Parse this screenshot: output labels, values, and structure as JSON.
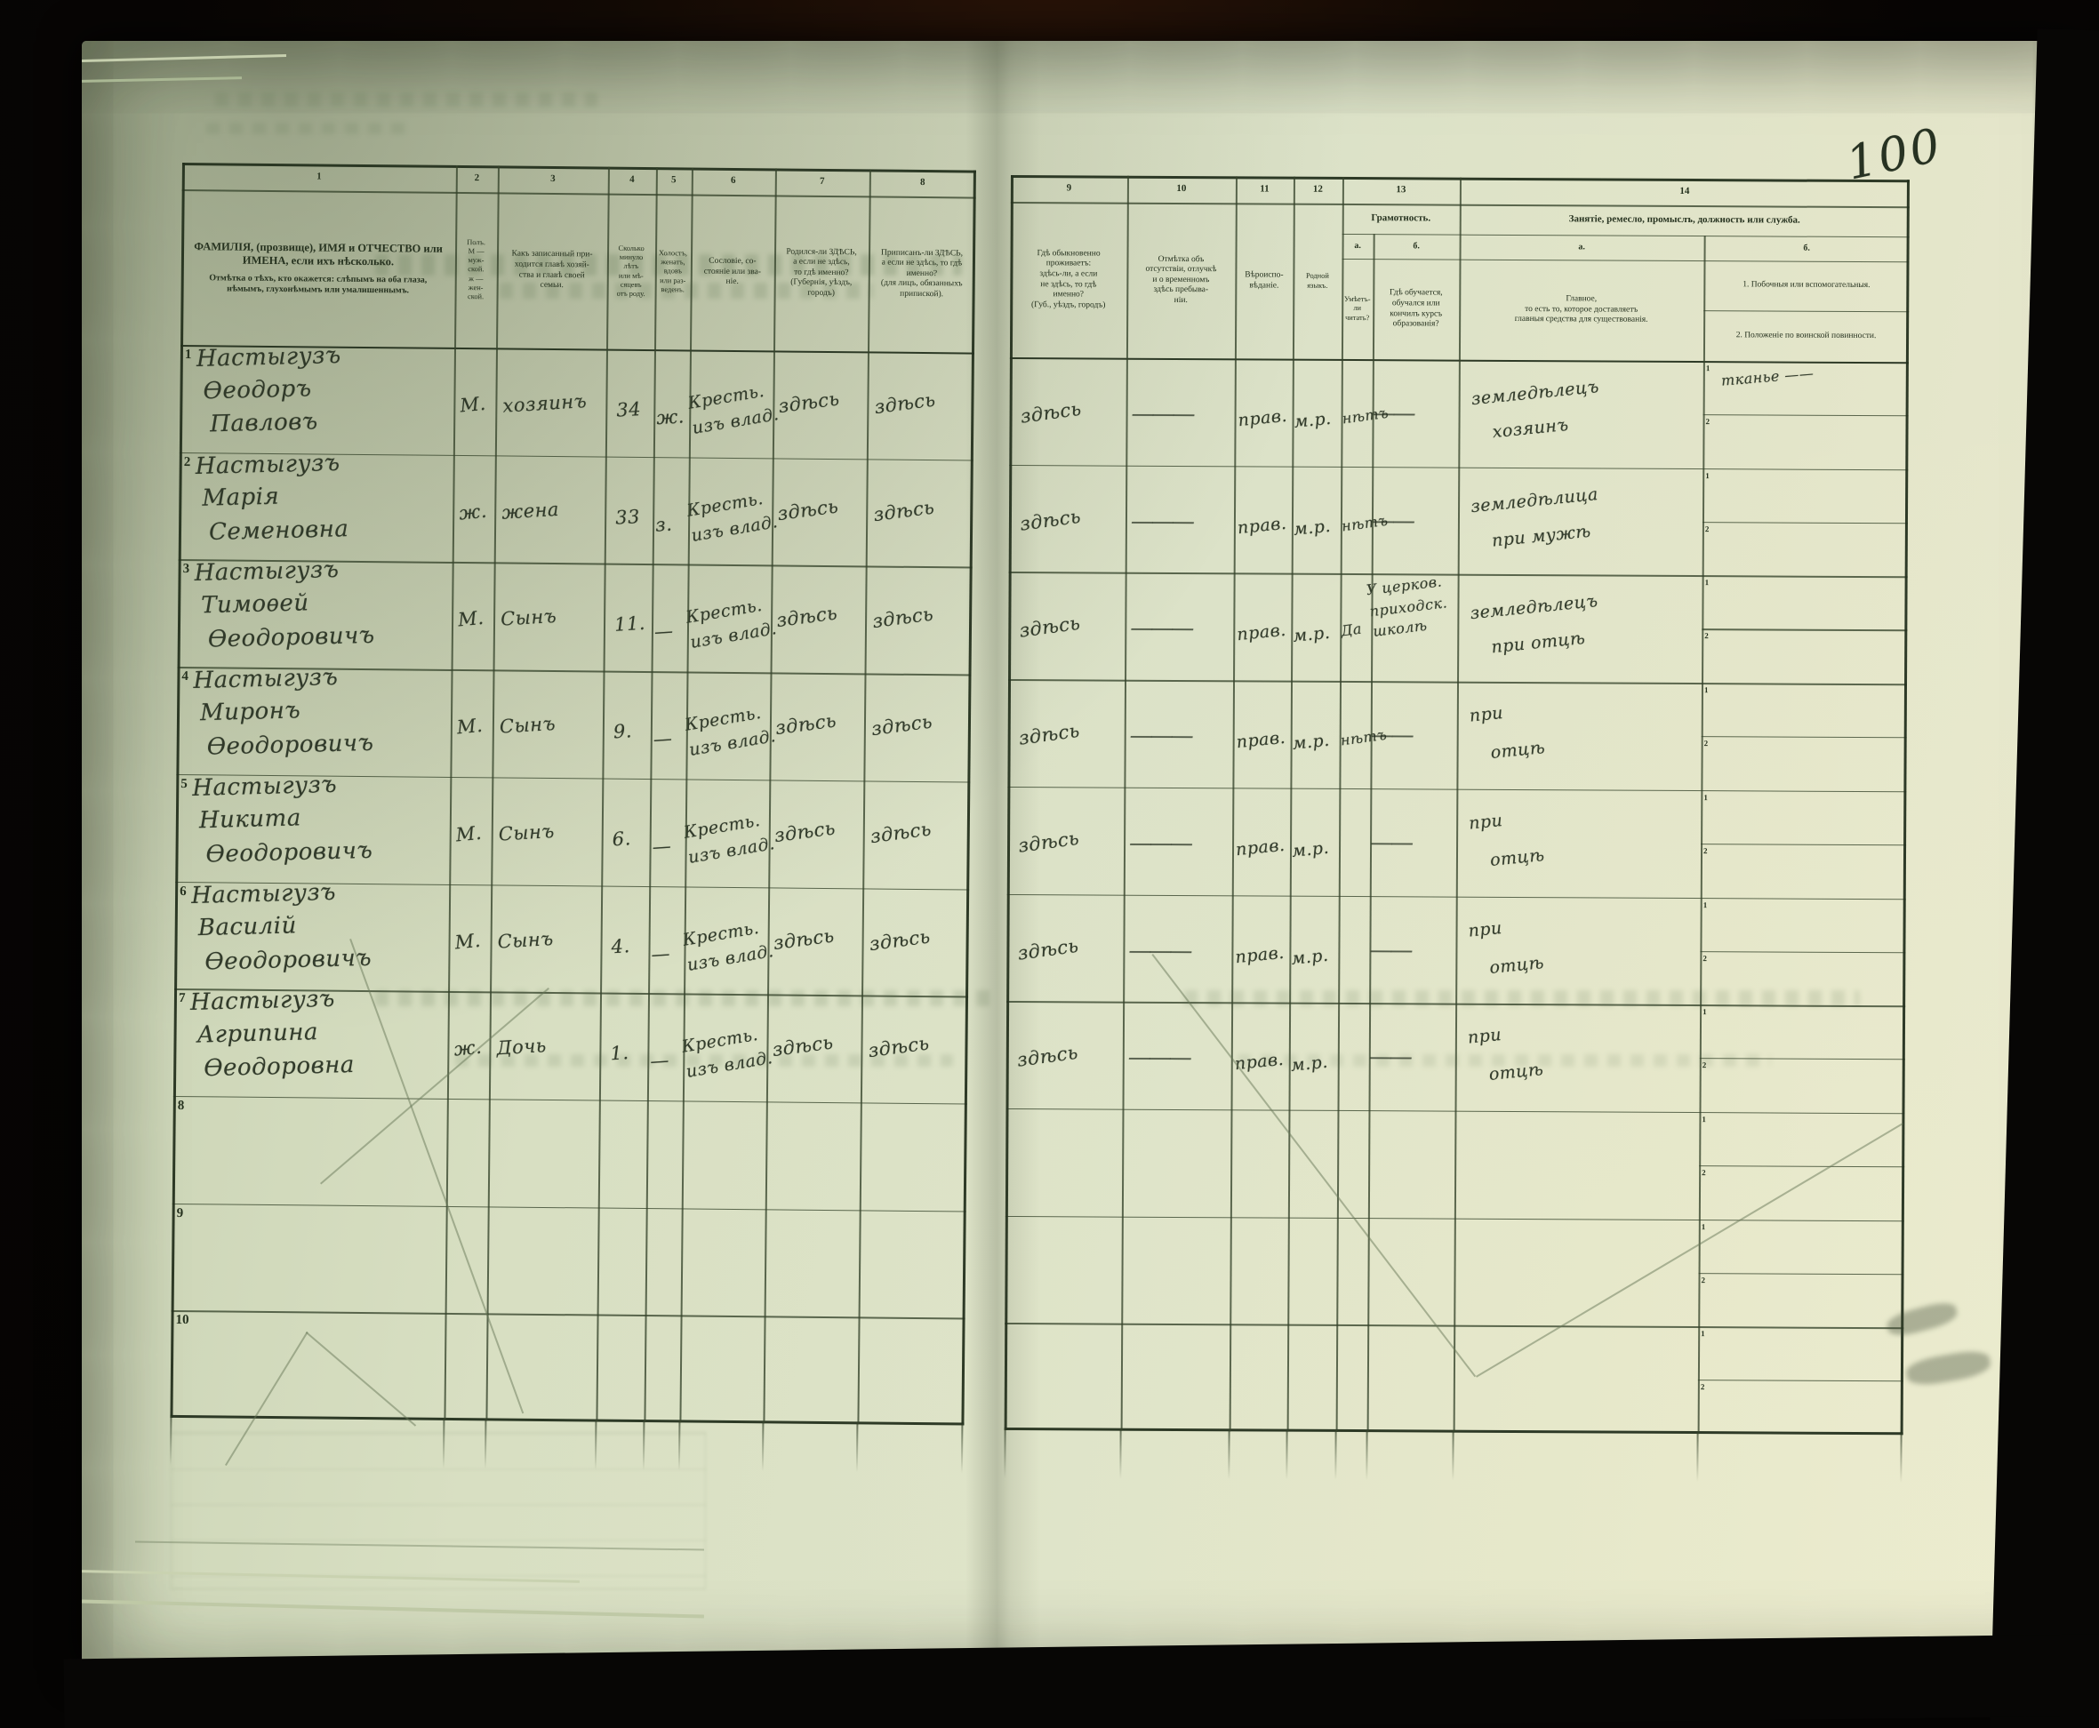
{
  "page_number": "100",
  "table": {
    "sub_row_labels": [
      "1",
      "2"
    ],
    "columns_left": [
      {
        "num": "1",
        "title": "ФАМИЛІЯ, (прозвище), ИМЯ и ОТЧЕСТВО или ИМЕНА, если ихъ нѣсколько.",
        "title2": "Отмѣтка о тѣхъ, кто окажется: слѣпымъ на оба глаза, нѣмымъ, глухонѣмымъ или умалишеннымъ."
      },
      {
        "num": "2",
        "title": "Полъ.\nМ — муж-\nской.\nж — жен-\nской."
      },
      {
        "num": "3",
        "title": "Какъ записанный при-\nходится главѣ хозяй-\nства и главѣ своей\nсемьи."
      },
      {
        "num": "4",
        "title": "Сколько\nминуло\nлѣтъ\nили мѣ-\nсяцевъ\nотъ роду."
      },
      {
        "num": "5",
        "title": "Холостъ,\nженатъ,\nвдовъ\nили раз-\nведенъ."
      },
      {
        "num": "6",
        "title": "Сословіе, со-\nстояніе или зва-\nніе."
      },
      {
        "num": "7",
        "title": "Родился-ли ЗДѢСЬ,\nа если не здѣсь,\nто гдѣ именно?\n(Губернія, уѣздъ, городъ)"
      },
      {
        "num": "8",
        "title": "Приписанъ-ли ЗДѢСЬ,\nа если не здѣсь, то гдѣ\nименно?\n(для лицъ, обязанныхъ\nприпиской)."
      }
    ],
    "columns_right": [
      {
        "num": "9",
        "title": "Гдѣ обыкновенно\nпроживаетъ:\nздѣсь-ли, а если\nне здѣсь, то гдѣ\nименно?\n(Губ., уѣздъ, городъ)"
      },
      {
        "num": "10",
        "title": "Отмѣтка объ\nотсутствіи, отлучкѣ\nи о временномъ\nздѣсь пребыва-\nніи."
      },
      {
        "num": "11",
        "title": "Вѣроиспо-\nвѣданіе."
      },
      {
        "num": "12",
        "title": "Родной\nязыкъ."
      },
      {
        "num": "13",
        "title": "Грамотность.",
        "sub": [
          {
            "letter": "а.",
            "text": "Умѣетъ-\nли\nчитать?"
          },
          {
            "letter": "б.",
            "text": "Гдѣ обучается,\nобучался или\nкончилъ курсъ\nобразованія?"
          }
        ]
      },
      {
        "num": "14",
        "title": "Занятіе, ремесло, промыслъ, должность или служба.",
        "sub": [
          {
            "letter": "а.",
            "text": "Главное,\nто есть то, которое доставляетъ\nглавныя средства для существованія."
          },
          {
            "letter": "б.",
            "text1": "1. Побочныя или вспомогательныя.",
            "text2": "2. Положеніе по воинской повинности."
          }
        ]
      }
    ],
    "rows": [
      {
        "n": "1",
        "name": [
          "Настыгузъ",
          "Ѳеодоръ",
          "Павловъ"
        ],
        "sex": "М.",
        "relation": "хозяинъ",
        "age": "34",
        "marital": "ж.",
        "estate": [
          "Кресть.",
          "изъ влад."
        ],
        "born": "здѣсь",
        "registered": "здѣсь",
        "resides": "здѣсь",
        "absence": "———",
        "faith": "прав.",
        "language": "м.р.",
        "reads": "нѣтъ",
        "school": "——",
        "occupation": [
          "земледѣлецъ",
          "хозяинъ"
        ],
        "side1": "тканье ——",
        "side2": ""
      },
      {
        "n": "2",
        "name": [
          "Настыгузъ",
          "Марія",
          "Семеновна"
        ],
        "sex": "ж.",
        "relation": "жена",
        "age": "33",
        "marital": "з.",
        "estate": [
          "Кресть.",
          "изъ влад."
        ],
        "born": "здѣсь",
        "registered": "здѣсь",
        "resides": "здѣсь",
        "absence": "———",
        "faith": "прав.",
        "language": "м.р.",
        "reads": "нѣтъ",
        "school": "——",
        "occupation": [
          "земледѣлица",
          "при мужѣ"
        ],
        "side1": "",
        "side2": ""
      },
      {
        "n": "3",
        "name": [
          "Настыгузъ",
          "Тимоѳей",
          "Ѳеодоровичъ"
        ],
        "sex": "М.",
        "relation": "Сынъ",
        "age": "11.",
        "marital": "—",
        "estate": [
          "Кресть.",
          "изъ влад."
        ],
        "born": "здѣсь",
        "registered": "здѣсь",
        "resides": "здѣсь",
        "absence": "———",
        "faith": "прав.",
        "language": "м.р.",
        "reads": "Да",
        "school": [
          "У церков.",
          "приходск.",
          "школѣ"
        ],
        "occupation": [
          "земледѣлецъ",
          "при отцѣ"
        ],
        "side1": "",
        "side2": ""
      },
      {
        "n": "4",
        "name": [
          "Настыгузъ",
          "Миронъ",
          "Ѳеодоровичъ"
        ],
        "sex": "М.",
        "relation": "Сынъ",
        "age": "9.",
        "marital": "—",
        "estate": [
          "Кресть.",
          "изъ влад."
        ],
        "born": "здѣсь",
        "registered": "здѣсь",
        "resides": "здѣсь",
        "absence": "———",
        "faith": "прав.",
        "language": "м.р.",
        "reads": "нѣтъ",
        "school": "——",
        "occupation": [
          "при",
          "отцѣ"
        ],
        "side1": "",
        "side2": ""
      },
      {
        "n": "5",
        "name": [
          "Настыгузъ",
          "Никита",
          "Ѳеодоровичъ"
        ],
        "sex": "М.",
        "relation": "Сынъ",
        "age": "6.",
        "marital": "—",
        "estate": [
          "Кресть.",
          "изъ влад."
        ],
        "born": "здѣсь",
        "registered": "здѣсь",
        "resides": "здѣсь",
        "absence": "———",
        "faith": "прав.",
        "language": "м.р.",
        "reads": "",
        "school": "——",
        "occupation": [
          "при",
          "отцѣ"
        ],
        "side1": "",
        "side2": ""
      },
      {
        "n": "6",
        "name": [
          "Настыгузъ",
          "Василій",
          "Ѳеодоровичъ"
        ],
        "sex": "М.",
        "relation": "Сынъ",
        "age": "4.",
        "marital": "—",
        "estate": [
          "Кресть.",
          "изъ влад."
        ],
        "born": "здѣсь",
        "registered": "здѣсь",
        "resides": "здѣсь",
        "absence": "———",
        "faith": "прав.",
        "language": "м.р.",
        "reads": "",
        "school": "——",
        "occupation": [
          "при",
          "отцѣ"
        ],
        "side1": "",
        "side2": ""
      },
      {
        "n": "7",
        "name": [
          "Настыгузъ",
          "Агрипина",
          "Ѳеодоровна"
        ],
        "sex": "ж.",
        "relation": "Дочь",
        "age": "1.",
        "marital": "—",
        "estate": [
          "Кресть.",
          "изъ влад."
        ],
        "born": "здѣсь",
        "registered": "здѣсь",
        "resides": "здѣсь",
        "absence": "———",
        "faith": "прав.",
        "language": "м.р.",
        "reads": "",
        "school": "——",
        "occupation": [
          "при",
          "отцѣ"
        ],
        "side1": "",
        "side2": ""
      },
      {
        "n": "8"
      },
      {
        "n": "9"
      },
      {
        "n": "10"
      }
    ]
  }
}
